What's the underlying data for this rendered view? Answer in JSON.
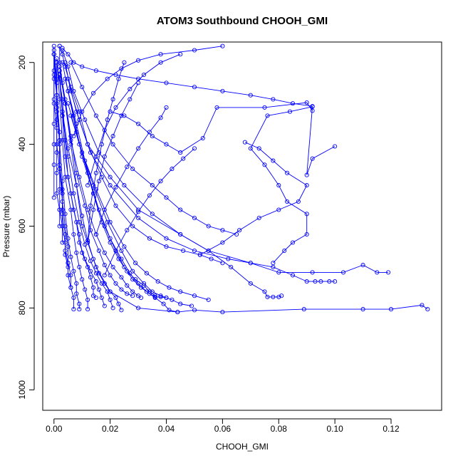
{
  "chart_data": {
    "type": "line",
    "title": "ATOM3 Southbound CHOOH_GMI",
    "xlabel": "CHOOH_GMI",
    "ylabel": "Pressure (mbar)",
    "xlim": [
      -0.004,
      0.138
    ],
    "ylim": [
      150,
      1050
    ],
    "y_reversed": true,
    "grid": false,
    "x_ticks": [
      "0.00",
      "0.02",
      "0.04",
      "0.06",
      "0.08",
      "0.10",
      "0.12"
    ],
    "x_tick_values": [
      0,
      0.02,
      0.04,
      0.06,
      0.08,
      0.1,
      0.12
    ],
    "y_ticks": [
      "200",
      "400",
      "600",
      "800",
      "1000"
    ],
    "y_tick_values": [
      200,
      400,
      600,
      800,
      1000
    ],
    "marker": "open-circle",
    "colors": {
      "series": "#0000ff",
      "axis": "#000000"
    },
    "series": [
      {
        "x": [
          0.133,
          0.131,
          0.12,
          0.11,
          0.089,
          0.06,
          0.05,
          0.044,
          0.03,
          0.02,
          0.015,
          0.01,
          0.008,
          0.006,
          0.004,
          0.003,
          0.002,
          0.002
        ],
        "y": [
          803,
          793,
          803,
          803,
          803,
          810,
          805,
          810,
          800,
          760,
          700,
          600,
          500,
          400,
          300,
          250,
          200,
          160
        ]
      },
      {
        "x": [
          0.119,
          0.115,
          0.11,
          0.103,
          0.092,
          0.08,
          0.07,
          0.055,
          0.045,
          0.03,
          0.02,
          0.012,
          0.009,
          0.006,
          0.004,
          0.003,
          0.002
        ],
        "y": [
          713,
          713,
          695,
          713,
          713,
          713,
          690,
          660,
          620,
          560,
          480,
          400,
          320,
          260,
          210,
          180,
          160
        ]
      },
      {
        "x": [
          0.1,
          0.098,
          0.095,
          0.093,
          0.09,
          0.085,
          0.078,
          0.07,
          0.062,
          0.05,
          0.04,
          0.03,
          0.02,
          0.013,
          0.009,
          0.006,
          0.004
        ],
        "y": [
          735,
          735,
          735,
          735,
          735,
          720,
          700,
          690,
          680,
          660,
          630,
          580,
          500,
          420,
          340,
          270,
          200
        ]
      },
      {
        "x": [
          0.081,
          0.08,
          0.078,
          0.076,
          0.075,
          0.07,
          0.063,
          0.055,
          0.045,
          0.035,
          0.025,
          0.016,
          0.011,
          0.007,
          0.005,
          0.003
        ],
        "y": [
          770,
          773,
          773,
          773,
          760,
          740,
          700,
          660,
          620,
          570,
          500,
          420,
          340,
          270,
          210,
          170
        ]
      },
      {
        "x": [
          0.1,
          0.092,
          0.09,
          0.092,
          0.084,
          0.076,
          0.07,
          0.075,
          0.08,
          0.083,
          0.09,
          0.09,
          0.085,
          0.082,
          0.078
        ],
        "y": [
          405,
          435,
          475,
          308,
          320,
          330,
          410,
          450,
          500,
          540,
          570,
          620,
          640,
          660,
          690
        ]
      },
      {
        "x": [
          0.092,
          0.09,
          0.075,
          0.058,
          0.053,
          0.045,
          0.04,
          0.035,
          0.03,
          0.025,
          0.02
        ],
        "y": [
          318,
          298,
          310,
          310,
          385,
          420,
          400,
          380,
          350,
          330,
          320
        ]
      },
      {
        "x": [
          0.092,
          0.085,
          0.078,
          0.07,
          0.06,
          0.05,
          0.04,
          0.03,
          0.022,
          0.015,
          0.01,
          0.007,
          0.005,
          0.003
        ],
        "y": [
          307,
          300,
          290,
          280,
          270,
          260,
          250,
          240,
          230,
          220,
          210,
          200,
          180,
          165
        ]
      },
      {
        "x": [
          0.068,
          0.073,
          0.078,
          0.083,
          0.09,
          0.087,
          0.08,
          0.073,
          0.066,
          0.06,
          0.052
        ],
        "y": [
          395,
          410,
          440,
          470,
          500,
          540,
          560,
          580,
          610,
          640,
          670
        ]
      },
      {
        "x": [
          0.065,
          0.06,
          0.055,
          0.05,
          0.045,
          0.04,
          0.035,
          0.028,
          0.021,
          0.015,
          0.01,
          0.006
        ],
        "y": [
          620,
          610,
          600,
          580,
          560,
          530,
          500,
          460,
          400,
          330,
          260,
          200
        ]
      },
      {
        "x": [
          0.06,
          0.056,
          0.052,
          0.046,
          0.04,
          0.034,
          0.028,
          0.022,
          0.017,
          0.012,
          0.008,
          0.005
        ],
        "y": [
          690,
          680,
          670,
          660,
          650,
          630,
          600,
          550,
          480,
          400,
          320,
          240
        ]
      },
      {
        "x": [
          0.055,
          0.05,
          0.045,
          0.041,
          0.037,
          0.033,
          0.029,
          0.025,
          0.02,
          0.015,
          0.01,
          0.006
        ],
        "y": [
          780,
          770,
          760,
          750,
          735,
          715,
          690,
          650,
          590,
          510,
          420,
          330
        ]
      },
      {
        "x": [
          0.049,
          0.045,
          0.042,
          0.04,
          0.038,
          0.035,
          0.032,
          0.028,
          0.024,
          0.019,
          0.014,
          0.009,
          0.005
        ],
        "y": [
          795,
          790,
          780,
          775,
          770,
          760,
          740,
          710,
          660,
          590,
          500,
          400,
          300
        ]
      },
      {
        "x": [
          0.044,
          0.041,
          0.039,
          0.036,
          0.033,
          0.03,
          0.027,
          0.024,
          0.02,
          0.016,
          0.012,
          0.008,
          0.005
        ],
        "y": [
          810,
          805,
          790,
          775,
          760,
          740,
          715,
          680,
          630,
          560,
          470,
          370,
          270
        ]
      },
      {
        "x": [
          0.04,
          0.038,
          0.036,
          0.034,
          0.031,
          0.028,
          0.025,
          0.022,
          0.018,
          0.014,
          0.01,
          0.007,
          0.004
        ],
        "y": [
          775,
          773,
          773,
          765,
          750,
          730,
          700,
          660,
          600,
          520,
          430,
          330,
          240
        ]
      },
      {
        "x": [
          0.036,
          0.034,
          0.032,
          0.029,
          0.026,
          0.023,
          0.02,
          0.017,
          0.014,
          0.011,
          0.008,
          0.005,
          0.003
        ],
        "y": [
          770,
          760,
          745,
          730,
          710,
          680,
          640,
          590,
          520,
          440,
          350,
          270,
          200
        ]
      },
      {
        "x": [
          0.031,
          0.03,
          0.028,
          0.026,
          0.024,
          0.021,
          0.018,
          0.015,
          0.012,
          0.009,
          0.006,
          0.004,
          0.002
        ],
        "y": [
          775,
          770,
          760,
          745,
          725,
          700,
          665,
          620,
          560,
          480,
          390,
          300,
          220
        ]
      },
      {
        "x": [
          0.028,
          0.026,
          0.024,
          0.022,
          0.02,
          0.018,
          0.016,
          0.013,
          0.011,
          0.008,
          0.006,
          0.004,
          0.002
        ],
        "y": [
          770,
          765,
          755,
          740,
          720,
          695,
          660,
          610,
          550,
          470,
          380,
          290,
          210
        ]
      },
      {
        "x": [
          0.024,
          0.023,
          0.022,
          0.02,
          0.018,
          0.016,
          0.014,
          0.012,
          0.01,
          0.008,
          0.005,
          0.003,
          0.002
        ],
        "y": [
          805,
          790,
          775,
          760,
          740,
          715,
          680,
          635,
          575,
          500,
          410,
          320,
          230
        ]
      },
      {
        "x": [
          0.021,
          0.02,
          0.019,
          0.017,
          0.015,
          0.013,
          0.011,
          0.009,
          0.007,
          0.005,
          0.003,
          0.002
        ],
        "y": [
          800,
          780,
          760,
          740,
          715,
          685,
          645,
          590,
          520,
          430,
          330,
          240
        ]
      },
      {
        "x": [
          0.018,
          0.017,
          0.016,
          0.015,
          0.013,
          0.011,
          0.009,
          0.008,
          0.006,
          0.004,
          0.003,
          0.002
        ],
        "y": [
          795,
          775,
          755,
          735,
          710,
          680,
          640,
          590,
          520,
          430,
          330,
          230
        ]
      },
      {
        "x": [
          0.015,
          0.014,
          0.014,
          0.013,
          0.012,
          0.01,
          0.009,
          0.007,
          0.005,
          0.004,
          0.003,
          0.001
        ],
        "y": [
          775,
          770,
          750,
          725,
          700,
          665,
          620,
          560,
          480,
          390,
          290,
          200
        ]
      },
      {
        "x": [
          0.012,
          0.012,
          0.011,
          0.01,
          0.009,
          0.008,
          0.007,
          0.006,
          0.004,
          0.003,
          0.002,
          0.001
        ],
        "y": [
          803,
          780,
          755,
          730,
          700,
          665,
          620,
          560,
          480,
          390,
          290,
          190
        ]
      },
      {
        "x": [
          0.009,
          0.009,
          0.008,
          0.008,
          0.007,
          0.006,
          0.005,
          0.004,
          0.003,
          0.002,
          0.001,
          0.001
        ],
        "y": [
          803,
          790,
          765,
          740,
          710,
          675,
          630,
          570,
          490,
          400,
          300,
          200
        ]
      },
      {
        "x": [
          0.007,
          0.007,
          0.006,
          0.006,
          0.005,
          0.005,
          0.004,
          0.003,
          0.002,
          0.002,
          0.001,
          0.0
        ],
        "y": [
          803,
          775,
          750,
          720,
          690,
          650,
          600,
          540,
          460,
          370,
          280,
          180
        ]
      },
      {
        "x": [
          0.006,
          0.005,
          0.005,
          0.004,
          0.004,
          0.003,
          0.003,
          0.002,
          0.002,
          0.001,
          0.001,
          0.0
        ],
        "y": [
          750,
          720,
          690,
          660,
          620,
          570,
          520,
          460,
          390,
          310,
          240,
          170
        ]
      },
      {
        "x": [
          0.005,
          0.004,
          0.004,
          0.003,
          0.003,
          0.003,
          0.002,
          0.002,
          0.001,
          0.001,
          0.0
        ],
        "y": [
          700,
          670,
          640,
          600,
          560,
          510,
          450,
          390,
          320,
          250,
          180
        ]
      },
      {
        "x": [
          0.003,
          0.003,
          0.002,
          0.002,
          0.002,
          0.001,
          0.001,
          0.001,
          0.0,
          0.0
        ],
        "y": [
          640,
          600,
          560,
          510,
          460,
          400,
          340,
          280,
          220,
          160
        ]
      },
      {
        "x": [
          0.002,
          0.002,
          0.001,
          0.001,
          0.001,
          0.001,
          0.0,
          0.0,
          0.0
        ],
        "y": [
          600,
          560,
          520,
          470,
          420,
          360,
          300,
          240,
          180
        ]
      },
      {
        "x": [
          0.0,
          0.0,
          0.0,
          0.0,
          0.0,
          0.0,
          0.0
        ],
        "y": [
          530,
          450,
          400,
          350,
          290,
          230,
          180
        ]
      },
      {
        "x": [
          0.06,
          0.05,
          0.038,
          0.03,
          0.024,
          0.019,
          0.014,
          0.01,
          0.007
        ],
        "y": [
          160,
          170,
          180,
          195,
          215,
          240,
          275,
          320,
          380
        ]
      },
      {
        "x": [
          0.045,
          0.038,
          0.032,
          0.027,
          0.022,
          0.018,
          0.015,
          0.012
        ],
        "y": [
          180,
          200,
          230,
          265,
          310,
          365,
          430,
          500
        ]
      },
      {
        "x": [
          0.04,
          0.038,
          0.034,
          0.03,
          0.026,
          0.022,
          0.018,
          0.015
        ],
        "y": [
          310,
          335,
          370,
          410,
          455,
          505,
          560,
          620
        ]
      },
      {
        "x": [
          0.05,
          0.046,
          0.042,
          0.038,
          0.034,
          0.03,
          0.026,
          0.022,
          0.018
        ],
        "y": [
          410,
          435,
          460,
          490,
          525,
          565,
          610,
          660,
          720
        ]
      },
      {
        "x": [
          0.03,
          0.027,
          0.024,
          0.021,
          0.018,
          0.016,
          0.014,
          0.012
        ],
        "y": [
          250,
          290,
          330,
          380,
          430,
          490,
          560,
          640
        ]
      },
      {
        "x": [
          0.025,
          0.023,
          0.021,
          0.019,
          0.017,
          0.015,
          0.013,
          0.012
        ],
        "y": [
          200,
          240,
          290,
          340,
          400,
          470,
          550,
          640
        ]
      }
    ]
  }
}
